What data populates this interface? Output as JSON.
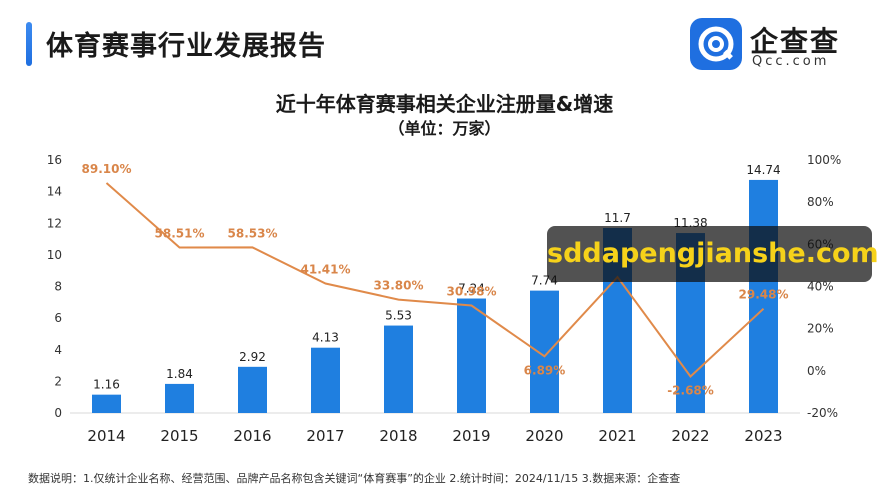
{
  "header": {
    "title": "体育赛事行业发展报告"
  },
  "logo": {
    "name": "企查查",
    "domain": "Qcc.com"
  },
  "watermark": "sddapengjianshe.com",
  "footnote": "数据说明：1.仅统计企业名称、经营范围、品牌产品名称包含关键词“体育赛事”的企业  2.统计时间：2024/11/15  3.数据来源：企查查",
  "chart_data": {
    "type": "bar",
    "title": "近十年体育赛事相关企业注册量&增速",
    "subtitle": "（单位：万家）",
    "categories": [
      "2014",
      "2015",
      "2016",
      "2017",
      "2018",
      "2019",
      "2020",
      "2021",
      "2022",
      "2023"
    ],
    "series": [
      {
        "values": [
          1.16,
          1.84,
          2.92,
          4.13,
          5.53,
          7.24,
          7.74,
          11.7,
          11.38,
          14.74
        ],
        "labels": [
          "1.16",
          "1.84",
          "2.92",
          "4.13",
          "5.53",
          "7.24",
          "7.74",
          "11.7",
          "11.38",
          "14.74"
        ],
        "color": "#1f7fe0",
        "axis": "left",
        "kind": "bar"
      },
      {
        "values": [
          89.1,
          58.51,
          58.53,
          41.41,
          33.8,
          30.98,
          6.89,
          44.5,
          -2.68,
          29.48
        ],
        "labels": [
          "89.10%",
          "58.51%",
          "58.53%",
          "41.41%",
          "33.80%",
          "30.98%",
          "6.89%",
          "",
          "-2.68%",
          "29.48%"
        ],
        "color": "#e08a4a",
        "axis": "right",
        "kind": "line"
      }
    ],
    "left_axis": {
      "ylim": [
        0,
        16
      ],
      "ticks": [
        "0",
        "2",
        "4",
        "6",
        "8",
        "10",
        "12",
        "14",
        "16"
      ]
    },
    "right_axis": {
      "ylim": [
        -20,
        100
      ],
      "ticks": [
        "-20%",
        "0%",
        "20%",
        "40%",
        "60%",
        "80%",
        "100%"
      ]
    },
    "grid": false,
    "legend": "none"
  }
}
